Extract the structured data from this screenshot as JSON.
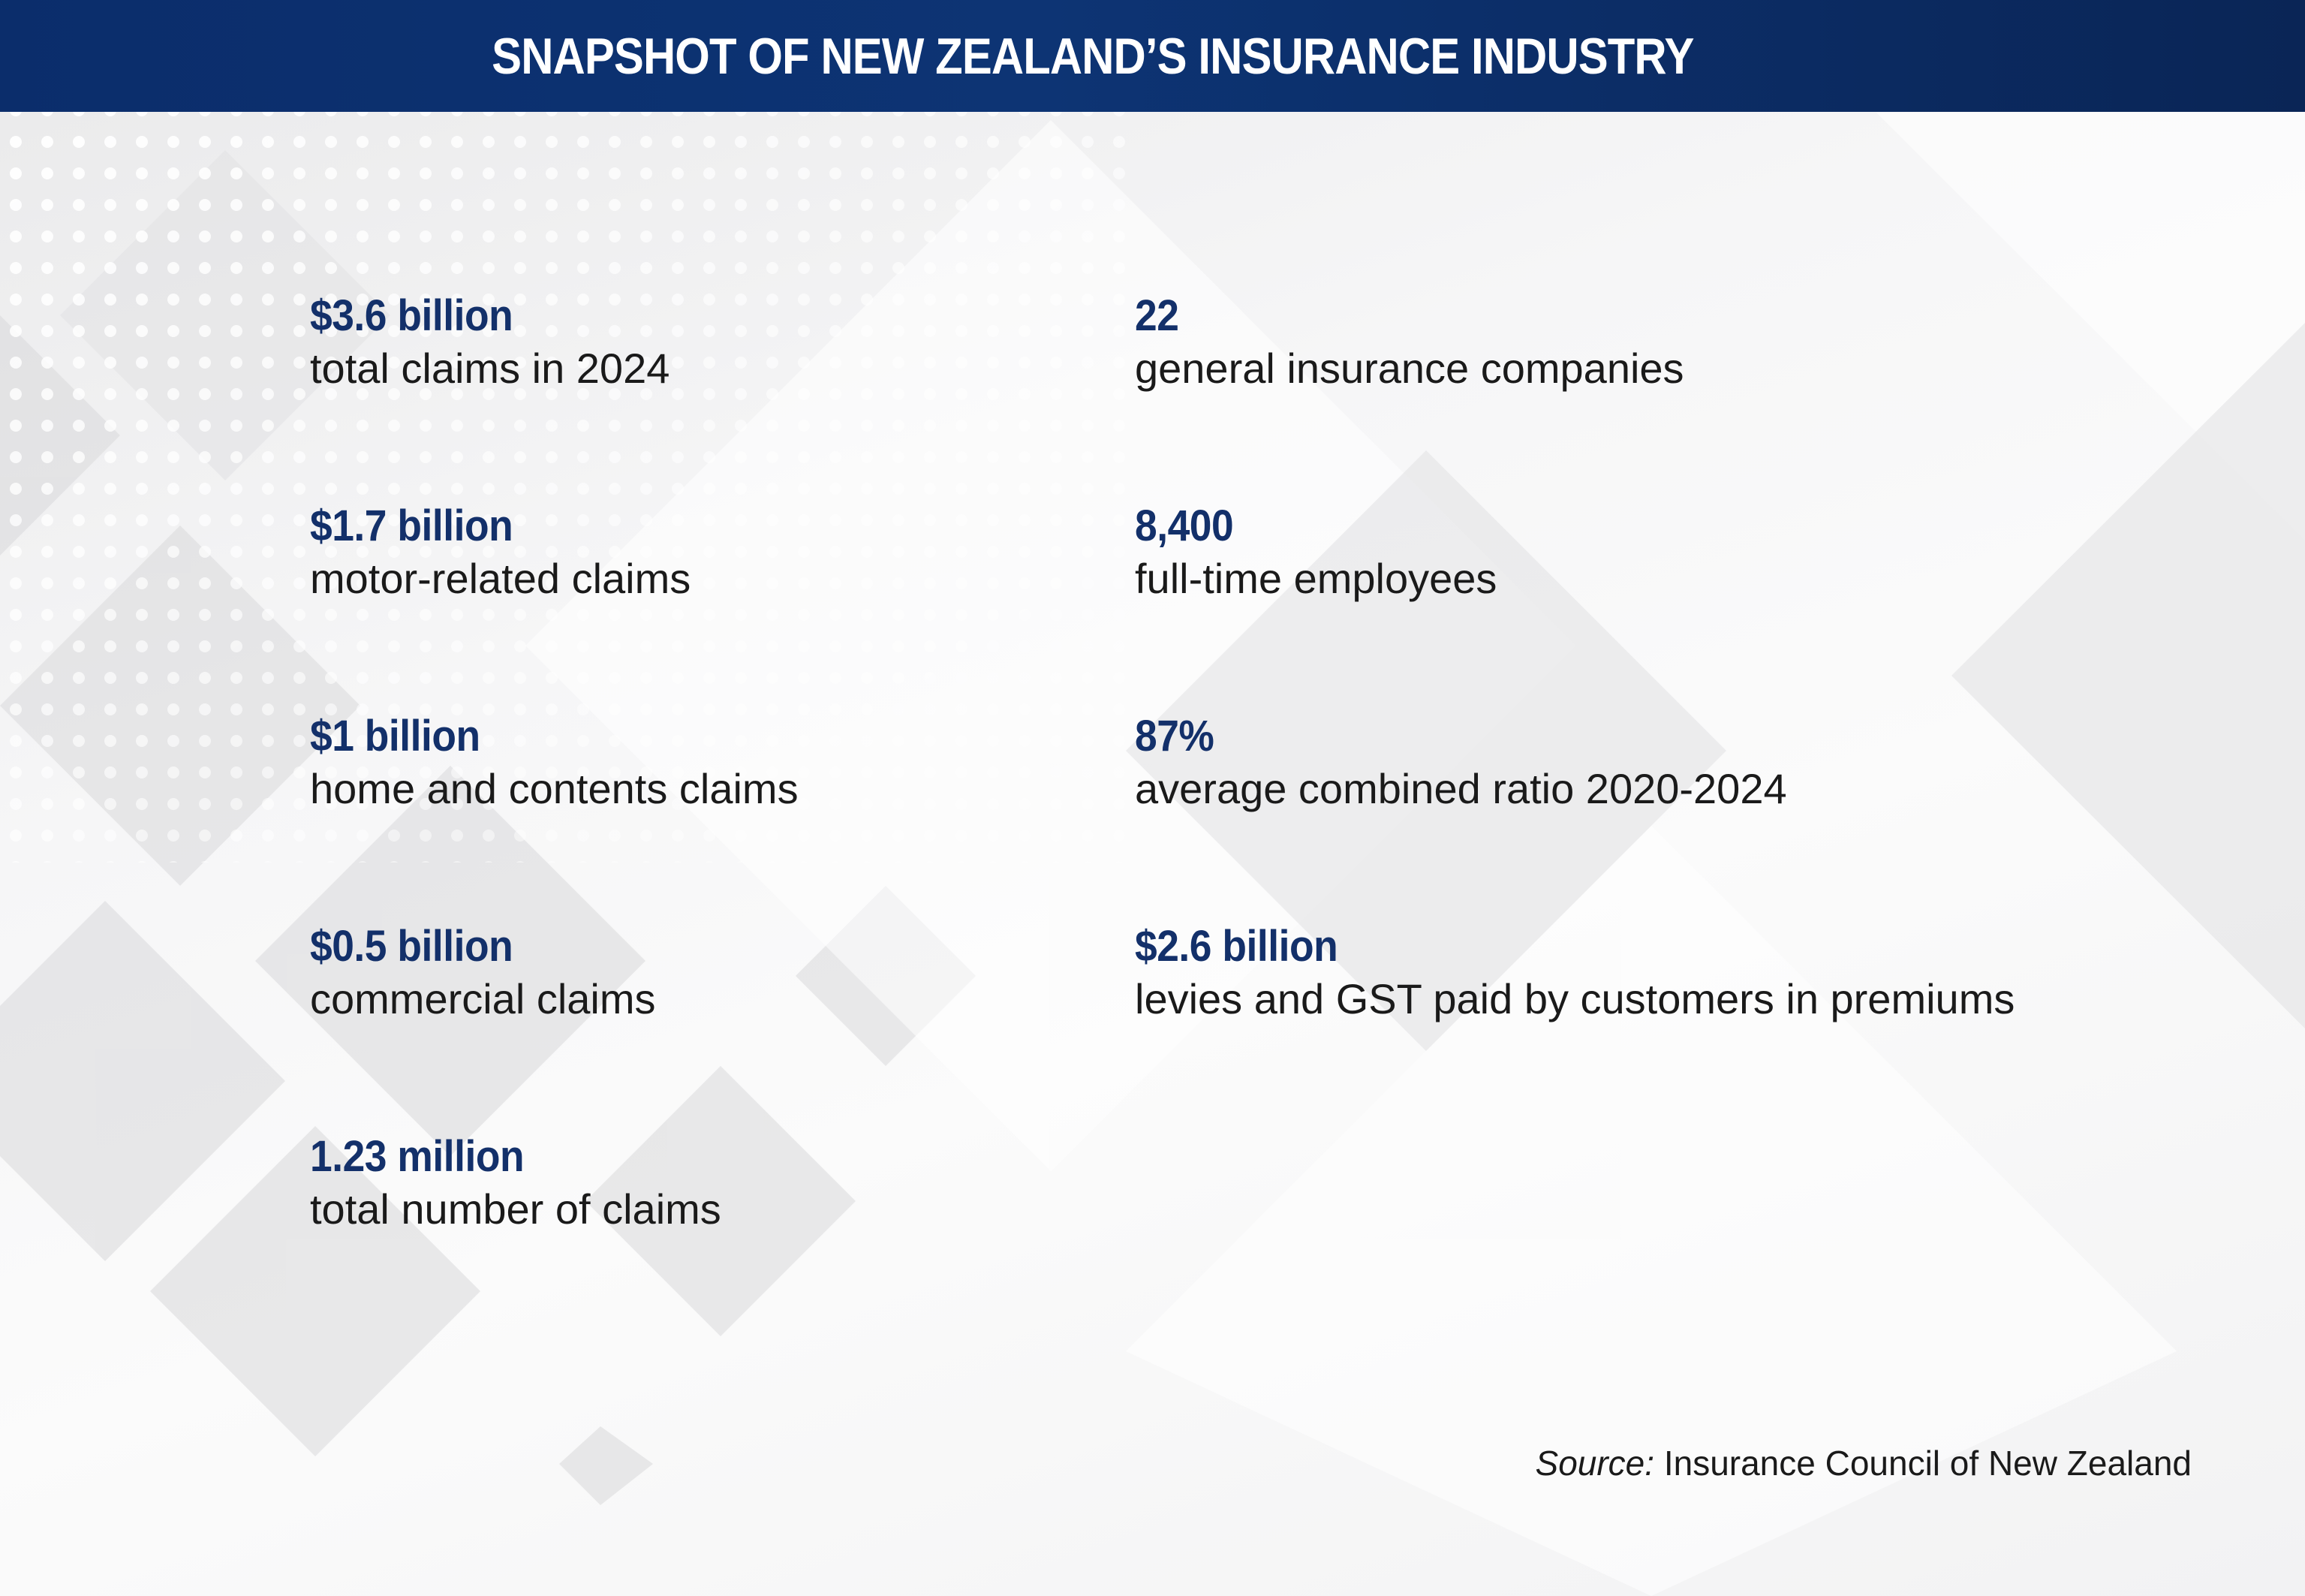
{
  "header": {
    "title": "SNAPSHOT OF NEW ZEALAND’S INSURANCE INDUSTRY"
  },
  "stats_left": [
    {
      "value": "$3.6 billion",
      "label": "total claims in 2024"
    },
    {
      "value": "$1.7 billion",
      "label": "motor-related claims"
    },
    {
      "value": "$1 billion",
      "label": "home and contents claims"
    },
    {
      "value": "$0.5 billion",
      "label": "commercial claims"
    },
    {
      "value": "1.23 million",
      "label": "total number of claims"
    }
  ],
  "stats_right": [
    {
      "value": "22",
      "label": "general insurance companies"
    },
    {
      "value": "8,400",
      "label": "full-time employees"
    },
    {
      "value": "87%",
      "label": "average combined ratio 2020-2024"
    },
    {
      "value": "$2.6 billion",
      "label": "levies and GST paid by customers in premiums"
    }
  ],
  "source": {
    "prefix": "Source:",
    "text": " Insurance Council of New Zealand"
  },
  "colors": {
    "header_bg": "#0d3474",
    "value_text": "#13306a",
    "label_text": "#1a1a1a"
  }
}
